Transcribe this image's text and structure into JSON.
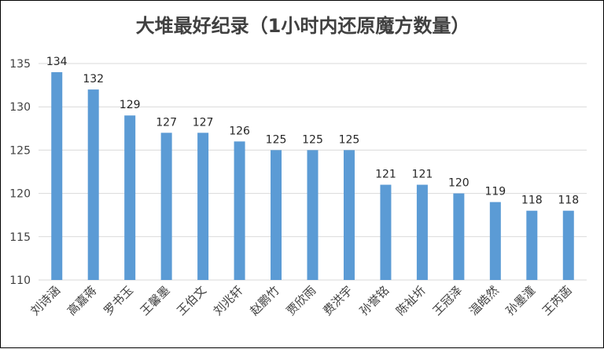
{
  "chart_data": {
    "type": "bar",
    "title": "大堆最好纪录（1小时内还原魔方数量）",
    "xlabel": "",
    "ylabel": "",
    "categories": [
      "刘诗涵",
      "高嘉蒋",
      "罗书玉",
      "王馨墨",
      "王伯文",
      "刘兆轩",
      "赵鹏竹",
      "贾欣雨",
      "费洪宇",
      "孙誉铭",
      "陈祉圻",
      "王冠泽",
      "温皓然",
      "孙墨潼",
      "王芮菡"
    ],
    "values": [
      134,
      132,
      129,
      127,
      127,
      126,
      125,
      125,
      125,
      121,
      121,
      120,
      119,
      118,
      118
    ],
    "ylim": [
      110,
      135
    ],
    "yticks": [
      110,
      115,
      120,
      125,
      130,
      135
    ],
    "grid": true,
    "data_labels": true,
    "bar_color": "#5B9BD5",
    "grid_color": "#D9D9D9"
  }
}
